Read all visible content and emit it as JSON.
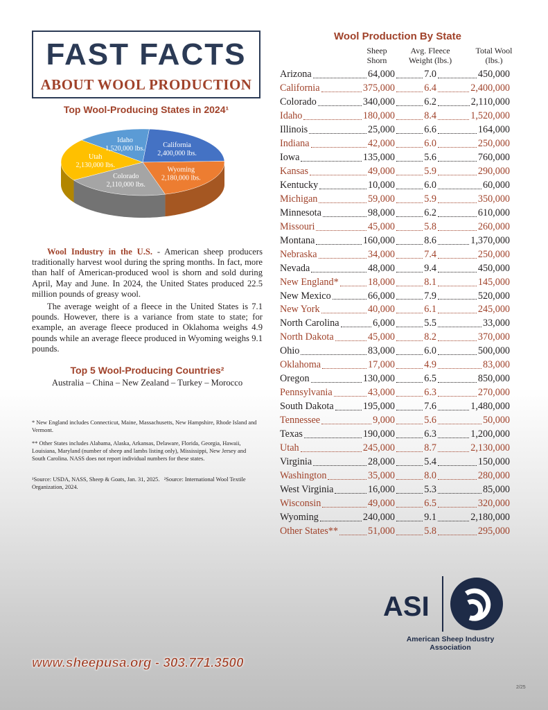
{
  "header": {
    "title": "FAST FACTS",
    "subtitle": "ABOUT WOOL PRODUCTION"
  },
  "chart_data": {
    "type": "pie",
    "title": "Top Wool-Producing States in 2024¹",
    "categories": [
      "California",
      "Wyoming",
      "Colorado",
      "Utah",
      "Idaho"
    ],
    "values": [
      2400000,
      2180000,
      2110000,
      2130000,
      1520000
    ],
    "value_labels": [
      "2,400,000 lbs.",
      "2,180,000 lbs.",
      "2,110,000 lbs.",
      "2,130,000 lbs.",
      "1,520,000 lbs."
    ],
    "colors": [
      "#4472c4",
      "#ed7d31",
      "#a5a5a5",
      "#ffc000",
      "#5b9bd5"
    ]
  },
  "intro": {
    "lead": "Wool Industry in the U.S.",
    "text": " - American sheep producers traditionally harvest wool during the spring months. In fact, more than half of American-produced wool is shorn and sold during April, May and June. In 2024, the United States produced 22.5 million pounds of greasy wool.",
    "text2": "The average weight of a fleece in the United States is 7.1 pounds. However, there is a variance from state to state; for example, an average fleece produced in Oklahoma weighs 4.9 pounds while an average fleece produced in Wyoming weighs 9.1 pounds."
  },
  "countries": {
    "title": "Top 5 Wool-Producing Countries²",
    "list": "Australia – China – New Zealand – Turkey – Morocco"
  },
  "footnotes": [
    "* New England includes Connecticut, Maine, Massachusetts, New Hampshire, Rhode Island and Vermont.",
    "** Other States includes Alabama, Alaska, Arkansas, Delaware, Florida, Georgia, Hawaii, Louisiana, Maryland (number of sheep and lambs listing only), Mississippi, New Jersey and South Carolina. NASS does not report individual numbers for these states.",
    "¹Source: USDA, NASS, Sheep & Goats, Jan. 31, 2025.   ²Source: International Wool Textile Organization, 2024."
  ],
  "table": {
    "title": "Wool Production By State",
    "columns": [
      "Sheep Shorn",
      "Avg. Fleece Weight (lbs.)",
      "Total Wool (lbs.)"
    ],
    "rows": [
      [
        "Arizona",
        "64,000",
        "7.0",
        "450,000"
      ],
      [
        "California",
        "375,000",
        "6.4",
        "2,400,000"
      ],
      [
        "Colorado",
        "340,000",
        "6.2",
        "2,110,000"
      ],
      [
        "Idaho",
        "180,000",
        "8.4",
        "1,520,000"
      ],
      [
        "Illinois",
        "25,000",
        "6.6",
        "164,000"
      ],
      [
        "Indiana",
        "42,000",
        "6.0",
        "250,000"
      ],
      [
        "Iowa",
        "135,000",
        "5.6",
        "760,000"
      ],
      [
        "Kansas",
        "49,000",
        "5.9",
        "290,000"
      ],
      [
        "Kentucky",
        "10,000",
        "6.0",
        "60,000"
      ],
      [
        "Michigan",
        "59,000",
        "5.9",
        "350,000"
      ],
      [
        "Minnesota",
        "98,000",
        "6.2",
        "610,000"
      ],
      [
        "Missouri",
        "45,000",
        "5.8",
        "260,000"
      ],
      [
        "Montana",
        "160,000",
        "8.6",
        "1,370,000"
      ],
      [
        "Nebraska",
        "34,000",
        "7.4",
        "250,000"
      ],
      [
        "Nevada",
        "48,000",
        "9.4",
        "450,000"
      ],
      [
        "New England*",
        "18,000",
        "8.1",
        "145,000"
      ],
      [
        "New Mexico",
        "66,000",
        "7.9",
        "520,000"
      ],
      [
        "New York",
        "40,000",
        "6.1",
        "245,000"
      ],
      [
        "North Carolina",
        "6,000",
        "5.5",
        "33,000"
      ],
      [
        "North Dakota",
        "45,000",
        "8.2",
        "370,000"
      ],
      [
        "Ohio",
        "83,000",
        "6.0",
        "500,000"
      ],
      [
        "Oklahoma",
        "17,000",
        "4.9",
        "83,000"
      ],
      [
        "Oregon",
        "130,000",
        "6.5",
        "850,000"
      ],
      [
        "Pennsylvania",
        "43,000",
        "6.3",
        "270,000"
      ],
      [
        "South Dakota",
        "195,000",
        "7.6",
        "1,480,000"
      ],
      [
        "Tennessee",
        "9,000",
        "5.6",
        "50,000"
      ],
      [
        "Texas",
        "190,000",
        "6.3",
        "1,200,000"
      ],
      [
        "Utah",
        "245,000",
        "8.7",
        "2,130,000"
      ],
      [
        "Virginia",
        "28,000",
        "5.4",
        "150,000"
      ],
      [
        "Washington",
        "35,000",
        "8.0",
        "280,000"
      ],
      [
        "West Virginia",
        "16,000",
        "5.3",
        "85,000"
      ],
      [
        "Wisconsin",
        "49,000",
        "6.5",
        "320,000"
      ],
      [
        "Wyoming",
        "240,000",
        "9.1",
        "2,180,000"
      ],
      [
        "Other States**",
        "51,000",
        "5.8",
        "295,000"
      ]
    ]
  },
  "footer": {
    "contact": "www.sheepusa.org - 303.771.3500",
    "logo": "ASI",
    "org": "American Sheep Industry Association",
    "page": "2/25"
  }
}
